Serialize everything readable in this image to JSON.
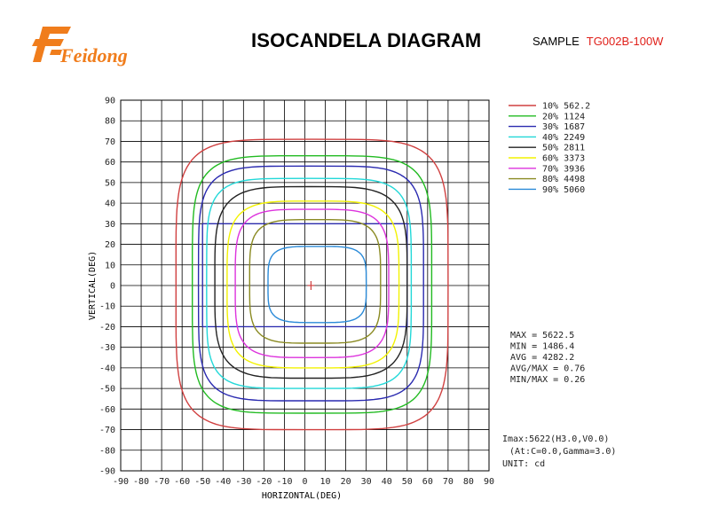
{
  "brand": {
    "logo_text": "Feidong",
    "logo_color": "#f07d1c"
  },
  "header": {
    "title": "ISOCANDELA DIAGRAM",
    "sample_label": "SAMPLE",
    "sample_model": "TG002B-100W"
  },
  "chart_data": {
    "type": "contour",
    "xlabel": "HORIZONTAL(DEG)",
    "ylabel": "VERTICAL(DEG)",
    "xlim": [
      -90,
      90
    ],
    "ylim": [
      -90,
      90
    ],
    "xticks": [
      "-90",
      "-80",
      "-70",
      "-60",
      "-50",
      "-40",
      "-30",
      "-20",
      "-10",
      "0",
      "10",
      "20",
      "30",
      "40",
      "50",
      "60",
      "70",
      "80",
      "90"
    ],
    "yticks": [
      "90",
      "80",
      "70",
      "60",
      "50",
      "40",
      "30",
      "20",
      "10",
      "0",
      "-10",
      "-20",
      "-30",
      "-40",
      "-50",
      "-60",
      "-70",
      "-80",
      "-90"
    ],
    "grid": true,
    "legend_position": "right",
    "series": [
      {
        "name": "10% 562.2",
        "color": "#d04040",
        "bounds": {
          "x": [
            -63,
            70
          ],
          "y": [
            -70,
            71
          ]
        }
      },
      {
        "name": "20% 1124",
        "color": "#22bb22",
        "bounds": {
          "x": [
            -55,
            62
          ],
          "y": [
            -62,
            63
          ]
        }
      },
      {
        "name": "30% 1687",
        "color": "#2a2ab0",
        "bounds": {
          "x": [
            -52,
            58
          ],
          "y": [
            -56,
            58
          ]
        }
      },
      {
        "name": "40% 2249",
        "color": "#22d8d8",
        "bounds": {
          "x": [
            -48,
            52
          ],
          "y": [
            -50,
            52
          ]
        }
      },
      {
        "name": "50% 2811",
        "color": "#222222",
        "bounds": {
          "x": [
            -44,
            50
          ],
          "y": [
            -45,
            48
          ]
        }
      },
      {
        "name": "60% 3373",
        "color": "#f2f200",
        "bounds": {
          "x": [
            -38,
            46
          ],
          "y": [
            -40,
            41
          ]
        }
      },
      {
        "name": "70% 3936",
        "color": "#dd33dd",
        "bounds": {
          "x": [
            -34,
            41
          ],
          "y": [
            -35,
            37
          ]
        }
      },
      {
        "name": "80% 4498",
        "color": "#8a8a22",
        "bounds": {
          "x": [
            -27,
            37
          ],
          "y": [
            -28,
            32
          ]
        }
      },
      {
        "name": "90% 5060",
        "color": "#2a8ad8",
        "bounds": {
          "x": [
            -18,
            30
          ],
          "y": [
            -18,
            19
          ]
        }
      }
    ],
    "rectangle": {
      "color": "#2a2ab0",
      "x": [
        -50,
        50
      ],
      "y": [
        -20,
        30
      ]
    },
    "peak_marker": {
      "x": 3,
      "y": 0,
      "color": "#d04040"
    },
    "stats": [
      "MAX = 5622.5",
      "MIN = 1486.4",
      "AVG = 4282.2",
      "AVG/MAX = 0.76",
      "MIN/MAX = 0.26"
    ],
    "notes": [
      "Imax:5622(H3.0,V0.0)",
      "(At:C=0.0,Gamma=3.0)",
      "UNIT: cd"
    ]
  }
}
